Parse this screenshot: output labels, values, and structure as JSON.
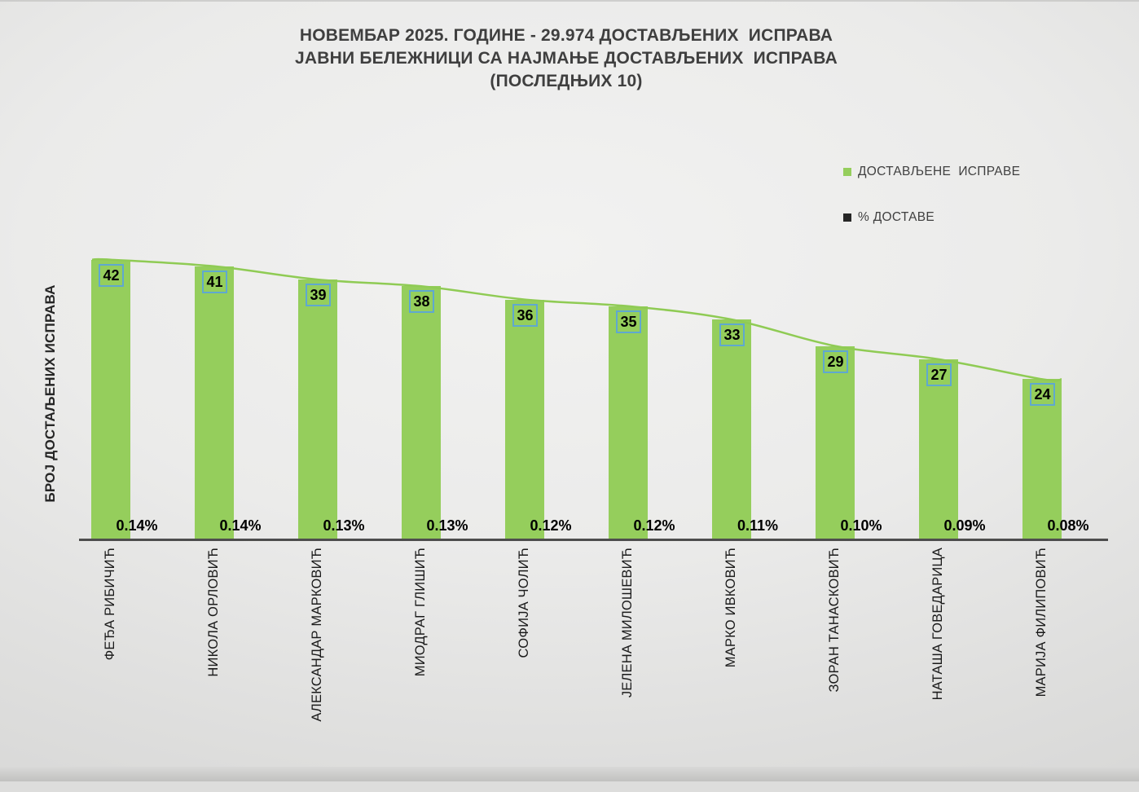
{
  "title": {
    "line1": "НОВЕМБАР 2025. ГОДИНЕ - 29.974 ДОСТАВЉЕНИХ  ИСПРАВА",
    "line2": "ЈАВНИ БЕЛЕЖНИЦИ СА НАЈМАЊЕ ДОСТАВЉЕНИХ  ИСПРАВА",
    "line3": "(ПОСЛЕДЊИХ 10)"
  },
  "y_axis_label": "БРОЈ ДОСТАЉЕНИХ ИСПРАВА",
  "legend": [
    {
      "label": "ДОСТАВЉЕНЕ  ИСПРАВЕ",
      "color": "#95CE5C"
    },
    {
      "label": "% ДОСТАВЕ",
      "color": "#262626"
    }
  ],
  "chart_data": {
    "type": "bar",
    "title": "НОВЕМБАР 2025. ГОДИНЕ - 29.974 ДОСТАВЉЕНИХ ИСПРАВА — ЈАВНИ БЕЛЕЖНИЦИ СА НАЈМАЊЕ ДОСТАВЉЕНИХ ИСПРАВА (ПОСЛЕДЊИХ 10)",
    "xlabel": "",
    "ylabel": "БРОЈ ДОСТАЉЕНИХ ИСПРАВА",
    "ylim": [
      0,
      45
    ],
    "grid": false,
    "legend_position": "right",
    "categories": [
      "ФЕЂА РИБИЧИЋ",
      "НИКОЛА ОРЛОВИЋ",
      "АЛЕКСАНДАР МАРКОВИЋ",
      "МИОДРАГ ГЛИШИЋ",
      "СОФИЈА ЧОЛИЋ",
      "ЈЕЛЕНА МИЛОШЕВИЋ",
      "МАРКО ИВКОВИЋ",
      "ЗОРАН ТАНАСКОВИЋ",
      "НАТАША ГОВЕДАРИЦА",
      "МАРИЈА ФИЛИПОВИЋ"
    ],
    "series": [
      {
        "name": "ДОСТАВЉЕНЕ ИСПРАВЕ",
        "type": "bar",
        "color": "#95CE5C",
        "values": [
          42,
          41,
          39,
          38,
          36,
          35,
          33,
          29,
          27,
          24
        ]
      },
      {
        "name": "% ДОСТАВЕ",
        "type": "line",
        "color": "#262626",
        "labels": [
          "0.14%",
          "0.14%",
          "0.13%",
          "0.13%",
          "0.12%",
          "0.12%",
          "0.11%",
          "0.10%",
          "0.09%",
          "0.08%"
        ]
      }
    ],
    "line_color": "#8FCB54",
    "value_box_border": "#5FA8D0",
    "axis_color": "#4D4D4D"
  }
}
